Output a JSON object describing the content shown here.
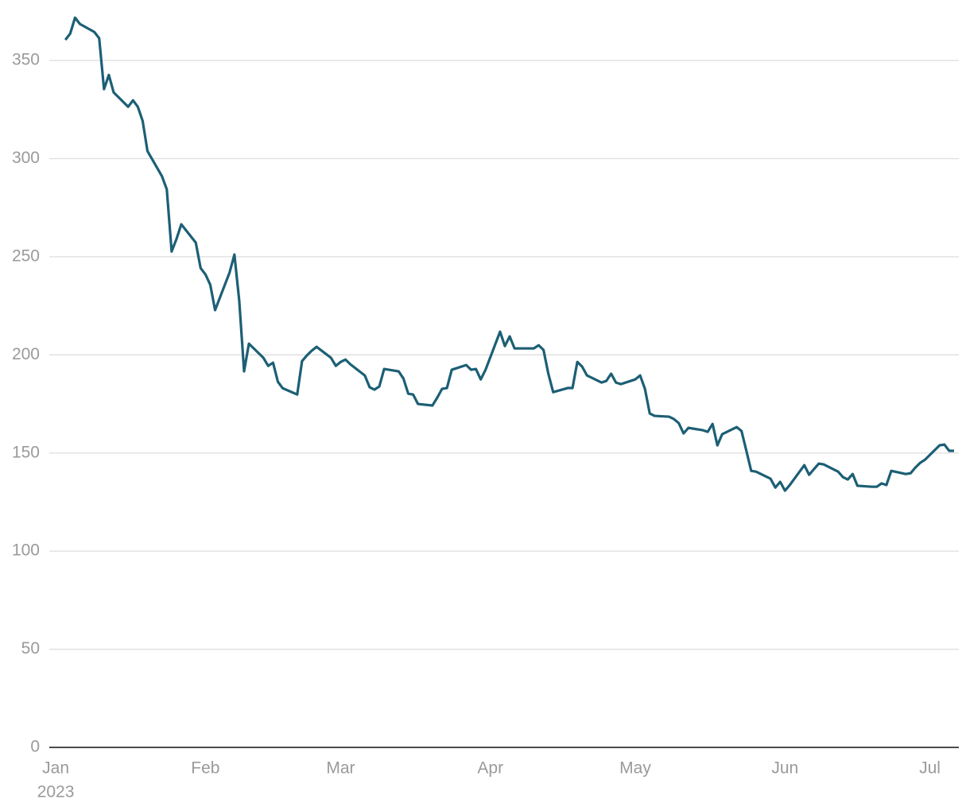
{
  "chart_data": {
    "type": "line",
    "x": [
      "2023-01-03",
      "2023-01-04",
      "2023-01-05",
      "2023-01-06",
      "2023-01-09",
      "2023-01-10",
      "2023-01-11",
      "2023-01-12",
      "2023-01-13",
      "2023-01-16",
      "2023-01-17",
      "2023-01-18",
      "2023-01-19",
      "2023-01-20",
      "2023-01-23",
      "2023-01-24",
      "2023-01-25",
      "2023-01-26",
      "2023-01-27",
      "2023-01-30",
      "2023-01-31",
      "2023-02-01",
      "2023-02-02",
      "2023-02-03",
      "2023-02-06",
      "2023-02-07",
      "2023-02-08",
      "2023-02-09",
      "2023-02-10",
      "2023-02-13",
      "2023-02-14",
      "2023-02-15",
      "2023-02-16",
      "2023-02-17",
      "2023-02-20",
      "2023-02-21",
      "2023-02-22",
      "2023-02-23",
      "2023-02-24",
      "2023-02-27",
      "2023-02-28",
      "2023-03-01",
      "2023-03-02",
      "2023-03-03",
      "2023-03-06",
      "2023-03-07",
      "2023-03-08",
      "2023-03-09",
      "2023-03-10",
      "2023-03-13",
      "2023-03-14",
      "2023-03-15",
      "2023-03-16",
      "2023-03-17",
      "2023-03-20",
      "2023-03-21",
      "2023-03-22",
      "2023-03-23",
      "2023-03-24",
      "2023-03-27",
      "2023-03-28",
      "2023-03-29",
      "2023-03-30",
      "2023-03-31",
      "2023-04-03",
      "2023-04-04",
      "2023-04-05",
      "2023-04-06",
      "2023-04-10",
      "2023-04-11",
      "2023-04-12",
      "2023-04-13",
      "2023-04-14",
      "2023-04-17",
      "2023-04-18",
      "2023-04-19",
      "2023-04-20",
      "2023-04-21",
      "2023-04-24",
      "2023-04-25",
      "2023-04-26",
      "2023-04-27",
      "2023-04-28",
      "2023-05-01",
      "2023-05-02",
      "2023-05-03",
      "2023-05-04",
      "2023-05-05",
      "2023-05-08",
      "2023-05-09",
      "2023-05-10",
      "2023-05-11",
      "2023-05-12",
      "2023-05-15",
      "2023-05-16",
      "2023-05-17",
      "2023-05-18",
      "2023-05-19",
      "2023-05-22",
      "2023-05-23",
      "2023-05-24",
      "2023-05-25",
      "2023-05-26",
      "2023-05-29",
      "2023-05-30",
      "2023-05-31",
      "2023-06-01",
      "2023-06-02",
      "2023-06-05",
      "2023-06-06",
      "2023-06-07",
      "2023-06-08",
      "2023-06-09",
      "2023-06-12",
      "2023-06-13",
      "2023-06-14",
      "2023-06-15",
      "2023-06-16",
      "2023-06-19",
      "2023-06-20",
      "2023-06-21",
      "2023-06-22",
      "2023-06-23",
      "2023-06-26",
      "2023-06-27",
      "2023-06-28",
      "2023-06-29",
      "2023-06-30",
      "2023-07-03",
      "2023-07-04",
      "2023-07-05",
      "2023-07-06"
    ],
    "series": [
      {
        "color": "#1c5f75",
        "values": [
          360.5,
          363.7,
          371.8,
          368.6,
          364.5,
          361.3,
          335.4,
          342.6,
          333.7,
          326.4,
          329.7,
          326.4,
          319.2,
          303.8,
          291,
          284.3,
          252.7,
          259,
          266.5,
          257.2,
          244.2,
          241,
          235.7,
          222.8,
          242,
          251.1,
          227.6,
          191.6,
          205.7,
          198.5,
          194.4,
          196,
          186.3,
          183,
          179.8,
          196.8,
          199.7,
          202.1,
          204.1,
          198.5,
          194.4,
          196.4,
          197.6,
          195.2,
          189.5,
          183.5,
          182.3,
          183.9,
          192.8,
          191.6,
          187.9,
          180.2,
          179.8,
          175,
          174.2,
          178.2,
          182.7,
          183.1,
          192.4,
          194.8,
          192.4,
          192.8,
          187.5,
          192.4,
          211.8,
          204.5,
          209.4,
          203.3,
          203.3,
          204.9,
          202.5,
          190.4,
          181,
          183.1,
          183.1,
          196.4,
          194,
          189.5,
          185.9,
          186.7,
          190.4,
          185.9,
          185.1,
          187.5,
          189.5,
          182.7,
          170.1,
          168.9,
          168.5,
          167.3,
          165.2,
          160,
          162.8,
          161.6,
          160.8,
          164.8,
          153.9,
          159.6,
          163.2,
          161.2,
          151.1,
          140.9,
          140.5,
          136.9,
          132.4,
          135.3,
          130.8,
          133.7,
          143.8,
          138.9,
          141.8,
          144.6,
          144.2,
          140.5,
          137.7,
          136.5,
          139.3,
          133.3,
          132.8,
          132.8,
          134.5,
          133.7,
          140.9,
          139.3,
          139.7,
          142.6,
          145,
          146.6,
          153.9,
          154.3,
          151.1,
          151.1
        ]
      }
    ],
    "xlim": [
      "2022-12-31",
      "2023-07-07"
    ],
    "xticks": [
      {
        "value": "2023-01-01",
        "label": "Jan",
        "sublabel": "2023"
      },
      {
        "value": "2023-02-01",
        "label": "Feb"
      },
      {
        "value": "2023-03-01",
        "label": "Mar"
      },
      {
        "value": "2023-04-01",
        "label": "Apr"
      },
      {
        "value": "2023-05-01",
        "label": "May"
      },
      {
        "value": "2023-06-01",
        "label": "Jun"
      },
      {
        "value": "2023-07-01",
        "label": "Jul"
      }
    ],
    "ylim": [
      0,
      380
    ],
    "yticks": [
      0,
      50,
      100,
      150,
      200,
      250,
      300,
      350
    ],
    "grid": true
  }
}
